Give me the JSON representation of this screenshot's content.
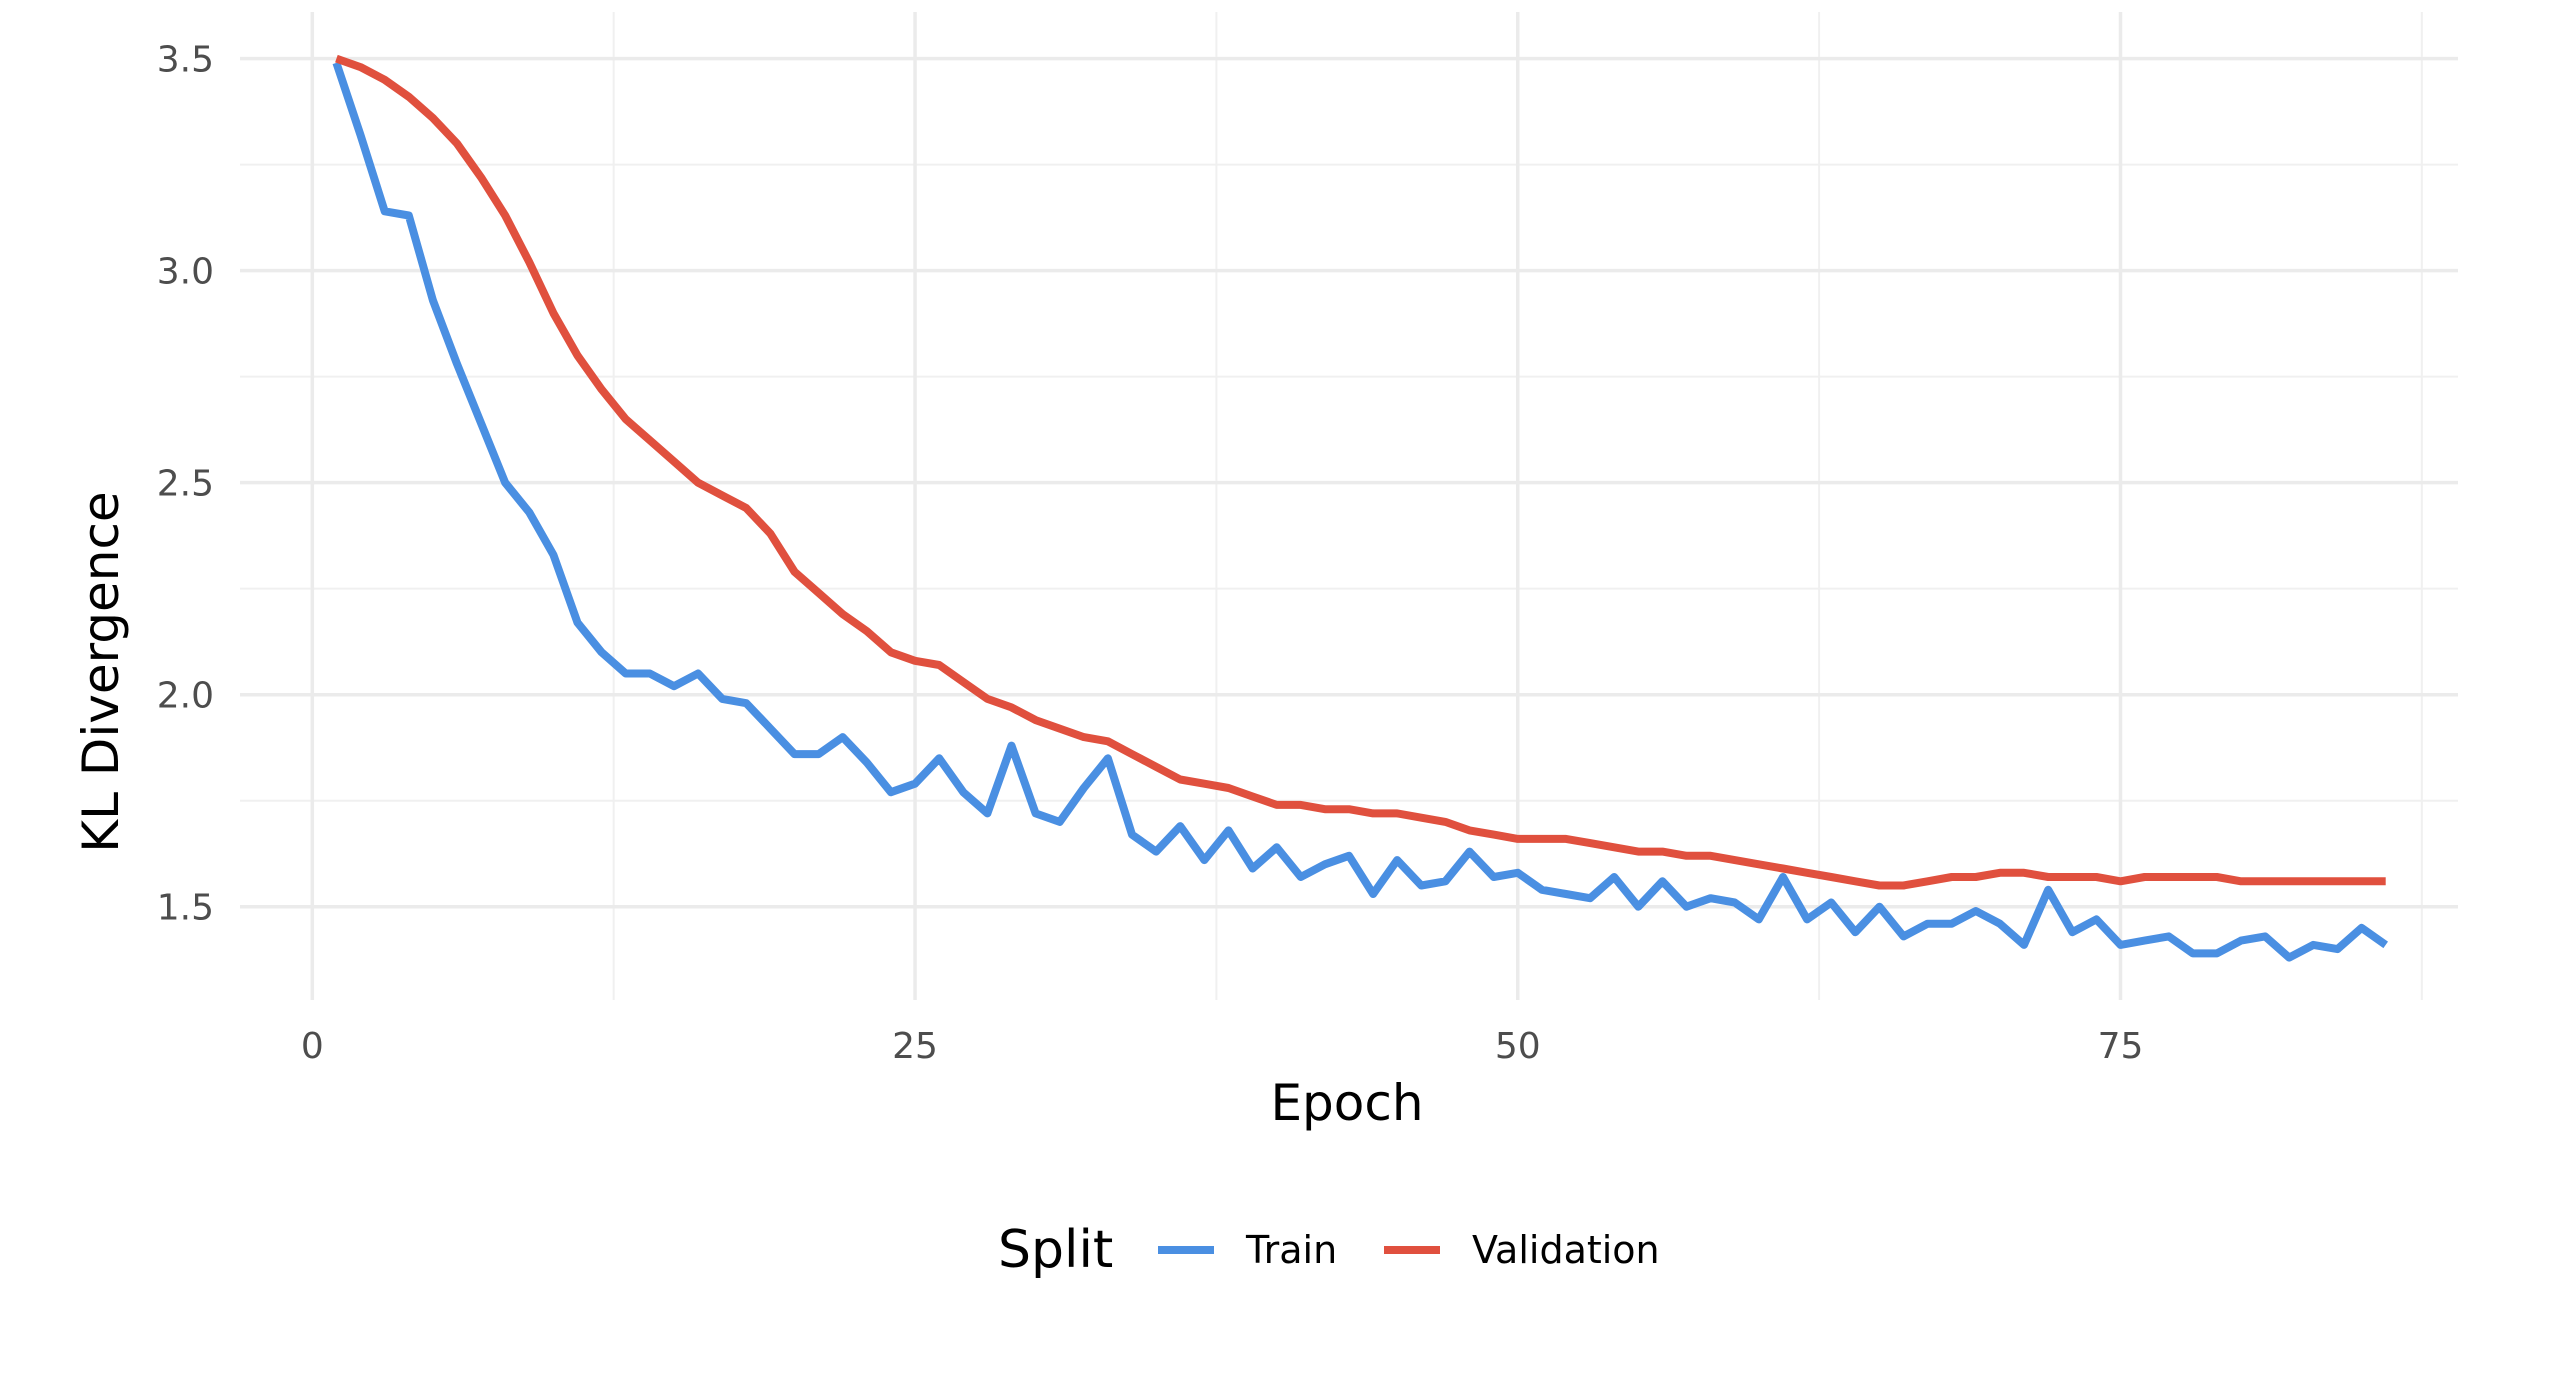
{
  "chart_data": {
    "type": "line",
    "xlabel": "Epoch",
    "ylabel": "KL Divergence",
    "xlim": [
      -3,
      89
    ],
    "ylim": [
      1.28,
      3.61
    ],
    "x_ticks": [
      0,
      25,
      50,
      75
    ],
    "x_tick_labels": [
      "0",
      "25",
      "50",
      "75"
    ],
    "y_ticks": [
      1.5,
      2.0,
      2.5,
      3.0,
      3.5
    ],
    "y_tick_labels": [
      "1.5",
      "2.0",
      "2.5",
      "3.0",
      "3.5"
    ],
    "x_minor_ticks": [
      12.5,
      37.5,
      62.5,
      87.5
    ],
    "y_minor_ticks": [
      1.75,
      2.25,
      2.75,
      3.25
    ],
    "grid": true,
    "legend": {
      "title": "Split",
      "position": "bottom"
    },
    "x": [
      1,
      2,
      3,
      4,
      5,
      6,
      7,
      8,
      9,
      10,
      11,
      12,
      13,
      14,
      15,
      16,
      17,
      18,
      19,
      20,
      21,
      22,
      23,
      24,
      25,
      26,
      27,
      28,
      29,
      30,
      31,
      32,
      33,
      34,
      35,
      36,
      37,
      38,
      39,
      40,
      41,
      42,
      43,
      44,
      45,
      46,
      47,
      48,
      49,
      50,
      51,
      52,
      53,
      54,
      55,
      56,
      57,
      58,
      59,
      60,
      61,
      62,
      63,
      64,
      65,
      66,
      67,
      68,
      69,
      70,
      71,
      72,
      73,
      74,
      75,
      76,
      77,
      78,
      79,
      80,
      81,
      82,
      83,
      84,
      85,
      86
    ],
    "series": [
      {
        "name": "Train",
        "color": "#4a8fe2",
        "values": [
          3.49,
          3.32,
          3.14,
          3.13,
          2.93,
          2.78,
          2.64,
          2.5,
          2.43,
          2.33,
          2.17,
          2.1,
          2.05,
          2.05,
          2.02,
          2.05,
          1.99,
          1.98,
          1.92,
          1.86,
          1.86,
          1.9,
          1.84,
          1.77,
          1.79,
          1.85,
          1.77,
          1.72,
          1.88,
          1.72,
          1.7,
          1.78,
          1.85,
          1.67,
          1.63,
          1.69,
          1.61,
          1.68,
          1.59,
          1.64,
          1.57,
          1.6,
          1.62,
          1.53,
          1.61,
          1.55,
          1.56,
          1.63,
          1.57,
          1.58,
          1.54,
          1.53,
          1.52,
          1.57,
          1.5,
          1.56,
          1.5,
          1.52,
          1.51,
          1.47,
          1.57,
          1.47,
          1.51,
          1.44,
          1.5,
          1.43,
          1.46,
          1.46,
          1.49,
          1.46,
          1.41,
          1.54,
          1.44,
          1.47,
          1.41,
          1.42,
          1.43,
          1.39,
          1.39,
          1.42,
          1.43,
          1.38,
          1.41,
          1.4,
          1.45,
          1.41
        ]
      },
      {
        "name": "Validation",
        "color": "#e0503e",
        "values": [
          3.5,
          3.48,
          3.45,
          3.41,
          3.36,
          3.3,
          3.22,
          3.13,
          3.02,
          2.9,
          2.8,
          2.72,
          2.65,
          2.6,
          2.55,
          2.5,
          2.47,
          2.44,
          2.38,
          2.29,
          2.24,
          2.19,
          2.15,
          2.1,
          2.08,
          2.07,
          2.03,
          1.99,
          1.97,
          1.94,
          1.92,
          1.9,
          1.89,
          1.86,
          1.83,
          1.8,
          1.79,
          1.78,
          1.76,
          1.74,
          1.74,
          1.73,
          1.73,
          1.72,
          1.72,
          1.71,
          1.7,
          1.68,
          1.67,
          1.66,
          1.66,
          1.66,
          1.65,
          1.64,
          1.63,
          1.63,
          1.62,
          1.62,
          1.61,
          1.6,
          1.59,
          1.58,
          1.57,
          1.56,
          1.55,
          1.55,
          1.56,
          1.57,
          1.57,
          1.58,
          1.58,
          1.57,
          1.57,
          1.57,
          1.56,
          1.57,
          1.57,
          1.57,
          1.57,
          1.56,
          1.56,
          1.56,
          1.56,
          1.56,
          1.56,
          1.56
        ]
      }
    ]
  }
}
